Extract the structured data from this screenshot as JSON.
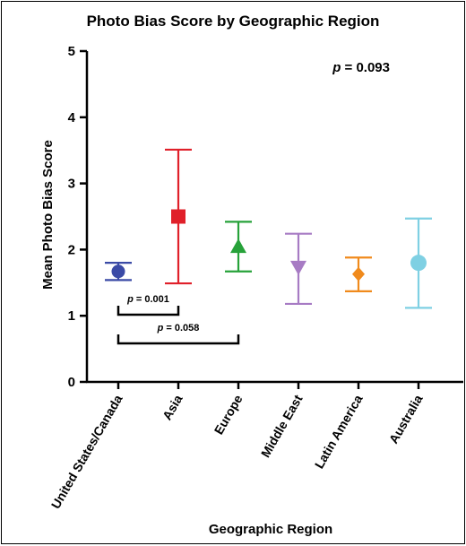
{
  "chart_data": {
    "type": "scatter",
    "title": "Photo Bias Score by Geographic Region",
    "xlabel": "Geographic Region",
    "ylabel": "Mean Photo Bias Score",
    "ylim": [
      0,
      5
    ],
    "yticks": [
      "0",
      "1",
      "2",
      "3",
      "4",
      "5"
    ],
    "overall_p_label": "p",
    "overall_p_value": " = 0.093",
    "categories": [
      "United States/Canada",
      "Asia",
      "Europe",
      "Middle East",
      "Latin America",
      "Australia"
    ],
    "series": [
      {
        "category": "United States/Canada",
        "mean": 1.67,
        "lower": 1.54,
        "upper": 1.8,
        "color": "#3a4aa6",
        "marker": "circle"
      },
      {
        "category": "Asia",
        "mean": 2.5,
        "lower": 1.49,
        "upper": 3.51,
        "color": "#e0202a",
        "marker": "square"
      },
      {
        "category": "Europe",
        "mean": 2.03,
        "lower": 1.67,
        "upper": 2.42,
        "color": "#27a23a",
        "marker": "triangle-up"
      },
      {
        "category": "Middle East",
        "mean": 1.75,
        "lower": 1.18,
        "upper": 2.24,
        "color": "#a77bc4",
        "marker": "triangle-down"
      },
      {
        "category": "Latin America",
        "mean": 1.63,
        "lower": 1.37,
        "upper": 1.88,
        "color": "#f08a1c",
        "marker": "diamond"
      },
      {
        "category": "Australia",
        "mean": 1.8,
        "lower": 1.12,
        "upper": 2.47,
        "color": "#7fd0e3",
        "marker": "circle"
      }
    ],
    "comparisons": [
      {
        "from": "United States/Canada",
        "to": "Asia",
        "label_p": "p",
        "label_value": " = 0.001"
      },
      {
        "from": "United States/Canada",
        "to": "Europe",
        "label_p": "p",
        "label_value": " = 0.058"
      }
    ]
  }
}
